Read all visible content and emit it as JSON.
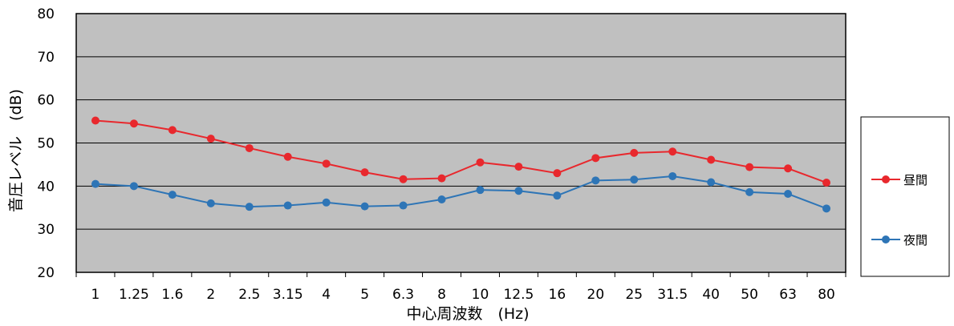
{
  "chart_data": {
    "type": "line",
    "categories": [
      "1",
      "1.25",
      "1.6",
      "2",
      "2.5",
      "3.15",
      "4",
      "5",
      "6.3",
      "8",
      "10",
      "12.5",
      "16",
      "20",
      "25",
      "31.5",
      "40",
      "50",
      "63",
      "80"
    ],
    "series": [
      {
        "name": "昼間",
        "color": "#e8282d",
        "values": [
          55.2,
          54.5,
          53.0,
          51.0,
          48.8,
          46.8,
          45.2,
          43.2,
          41.6,
          41.8,
          45.5,
          44.5,
          43.0,
          46.5,
          47.7,
          48.0,
          46.1,
          44.4,
          44.1,
          40.8
        ]
      },
      {
        "name": "夜間",
        "color": "#2e75b6",
        "values": [
          40.5,
          40.0,
          38.0,
          36.0,
          35.2,
          35.5,
          36.2,
          35.3,
          35.5,
          36.9,
          39.1,
          38.9,
          37.8,
          41.3,
          41.5,
          42.3,
          40.9,
          38.6,
          38.2,
          34.8
        ]
      }
    ],
    "xlabel": "中心周波数　(Hz)",
    "ylabel": "音圧レベル　(dB)",
    "ylim": [
      20,
      80
    ],
    "yticks": [
      20,
      30,
      40,
      50,
      60,
      70,
      80
    ],
    "grid": true,
    "plot_background": "#c0c0c0",
    "legend_position": "right"
  }
}
